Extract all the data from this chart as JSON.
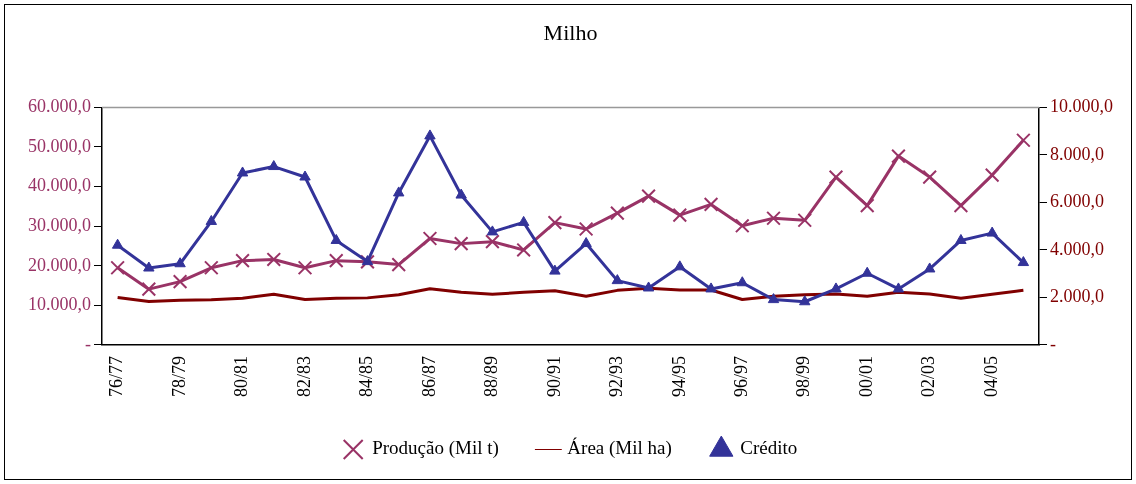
{
  "chart_data": {
    "type": "line",
    "title": "Milho",
    "categories": [
      "76/77",
      null,
      "78/79",
      null,
      "80/81",
      null,
      "82/83",
      null,
      "84/85",
      null,
      "86/87",
      null,
      "88/89",
      null,
      "90/91",
      null,
      "92/93",
      null,
      "94/95",
      null,
      "96/97",
      null,
      "98/99",
      null,
      "00/01",
      null,
      "02/03",
      null,
      "04/05",
      null
    ],
    "series": [
      {
        "name": "Produção (Mil t)",
        "color": "#993366",
        "marker": "cross",
        "values": [
          19500,
          14100,
          16000,
          19500,
          21300,
          21600,
          19500,
          21300,
          21000,
          20300,
          26900,
          25600,
          26100,
          24000,
          30900,
          29300,
          33300,
          37600,
          32800,
          35500,
          30100,
          32000,
          31500,
          42400,
          35200,
          47700,
          42400,
          35200,
          42900,
          51700
        ]
      },
      {
        "name": "Área (Mil ha)",
        "color": "#800000",
        "marker": "none",
        "values": [
          12000,
          11000,
          11300,
          11400,
          11800,
          12800,
          11500,
          11800,
          11900,
          12700,
          14200,
          13300,
          12800,
          13300,
          13700,
          12300,
          13800,
          14300,
          13900,
          13900,
          11500,
          12300,
          12700,
          12900,
          12300,
          13300,
          12900,
          11800,
          12800,
          13800
        ]
      },
      {
        "name": "Crédito",
        "color": "#333399",
        "marker": "triangle",
        "axis": "y2",
        "values": [
          4200,
          3240,
          3420,
          5200,
          7240,
          7510,
          7070,
          4400,
          3510,
          6400,
          8800,
          6310,
          4760,
          5160,
          3110,
          4270,
          2710,
          2400,
          3290,
          2360,
          2620,
          1910,
          1820,
          2360,
          3020,
          2360,
          3200,
          4400,
          4710,
          3470
        ]
      }
    ],
    "ylim": [
      0,
      60000
    ],
    "yticks": [
      {
        "value": 0,
        "label": "-"
      },
      {
        "value": 10000,
        "label": "10.000,0"
      },
      {
        "value": 20000,
        "label": "20.000,0"
      },
      {
        "value": 30000,
        "label": "30.000,0"
      },
      {
        "value": 40000,
        "label": "40.000,0"
      },
      {
        "value": 50000,
        "label": "50.000,0"
      },
      {
        "value": 60000,
        "label": "60.000,0"
      }
    ],
    "y2lim": [
      0,
      10000
    ],
    "y2ticks": [
      {
        "value": 0,
        "label": "-"
      },
      {
        "value": 2000,
        "label": "2.000,0"
      },
      {
        "value": 4000,
        "label": "4.000,0"
      },
      {
        "value": 6000,
        "label": "6.000,0"
      },
      {
        "value": 8000,
        "label": "8.000,0"
      },
      {
        "value": 10000,
        "label": "10.000,0"
      }
    ],
    "grid": false,
    "legend": "bottom",
    "line_style": "solid"
  }
}
